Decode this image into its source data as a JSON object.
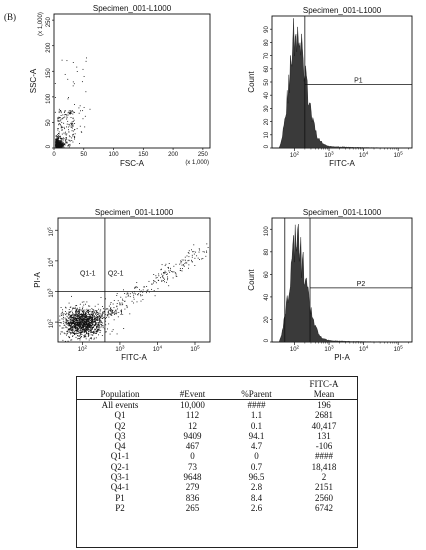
{
  "figure": {
    "panel_label": "(B)"
  },
  "chart_data": [
    {
      "type": "scatter",
      "title": "Specimen_001-L1000",
      "xlabel": "FSC-A",
      "ylabel": "SSC-A",
      "x_multiplier": "(x 1,000)",
      "y_multiplier": "(x 1,000)",
      "xlim": [
        0,
        262
      ],
      "ylim": [
        0,
        262
      ],
      "x_ticks": [
        "0",
        "50",
        "100",
        "150",
        "200",
        "250"
      ],
      "y_ticks": [
        "0",
        "50",
        "100",
        "150",
        "200",
        "250"
      ]
    },
    {
      "type": "histogram",
      "title": "Specimen_001-L1000",
      "xlabel": "FITC-A",
      "ylabel": "Count",
      "x_scale": "log",
      "x_ticks": [
        "10^2",
        "10^3",
        "10^4",
        "10^5"
      ],
      "y_ticks": [
        "0",
        "10",
        "20",
        "30",
        "40",
        "50",
        "60",
        "70",
        "80",
        "90"
      ],
      "ylim": [
        0,
        100
      ],
      "peak": {
        "x": "10^2",
        "count": 90
      },
      "gate": {
        "label": "P1",
        "from": "10^2.3",
        "to": "10^5.3",
        "level": 48
      }
    },
    {
      "type": "scatter",
      "title": "Specimen_001-L1000",
      "xlabel": "FITC-A",
      "ylabel": "PI-A",
      "x_scale": "log",
      "y_scale": "log",
      "x_ticks": [
        "10^2",
        "10^3",
        "10^4",
        "10^5"
      ],
      "y_ticks": [
        "10^2",
        "10^3",
        "10^4",
        "10^5"
      ],
      "quadrants": [
        "Q1-1",
        "Q2-1",
        "Q3-1",
        "Q4-1"
      ]
    },
    {
      "type": "histogram",
      "title": "Specimen_001-L1000",
      "xlabel": "PI-A",
      "ylabel": "Count",
      "x_scale": "log",
      "x_ticks": [
        "10^2",
        "10^3",
        "10^4",
        "10^5"
      ],
      "y_ticks": [
        "0",
        "20",
        "40",
        "60",
        "80",
        "100"
      ],
      "ylim": [
        0,
        110
      ],
      "peak": {
        "x": "10^2",
        "count": 92
      },
      "gate": {
        "label": "P2",
        "from": "10^2.45",
        "to": "10^5.3",
        "level": 48
      }
    },
    {
      "type": "table",
      "columns": [
        "Population",
        "#Event",
        "%Parent",
        "FITC-A Mean"
      ],
      "column_header_lines": [
        [
          "Population"
        ],
        [
          "#Event"
        ],
        [
          "%Parent"
        ],
        [
          "FITC-A",
          "Mean"
        ]
      ],
      "rows": [
        [
          "All events",
          "10,000",
          "####",
          "196"
        ],
        [
          "Q1",
          "112",
          "1.1",
          "2681"
        ],
        [
          "Q2",
          "12",
          "0.1",
          "40,417"
        ],
        [
          "Q3",
          "9409",
          "94.1",
          "131"
        ],
        [
          "Q4",
          "467",
          "4.7",
          "-106"
        ],
        [
          "Q1-1",
          "0",
          "0",
          "####"
        ],
        [
          "Q2-1",
          "73",
          "0.7",
          "18,418"
        ],
        [
          "Q3-1",
          "9648",
          "96.5",
          "2"
        ],
        [
          "Q4-1",
          "279",
          "2.8",
          "2151"
        ],
        [
          "P1",
          "836",
          "8.4",
          "2560"
        ],
        [
          "P2",
          "265",
          "2.6",
          "6742"
        ]
      ]
    }
  ]
}
